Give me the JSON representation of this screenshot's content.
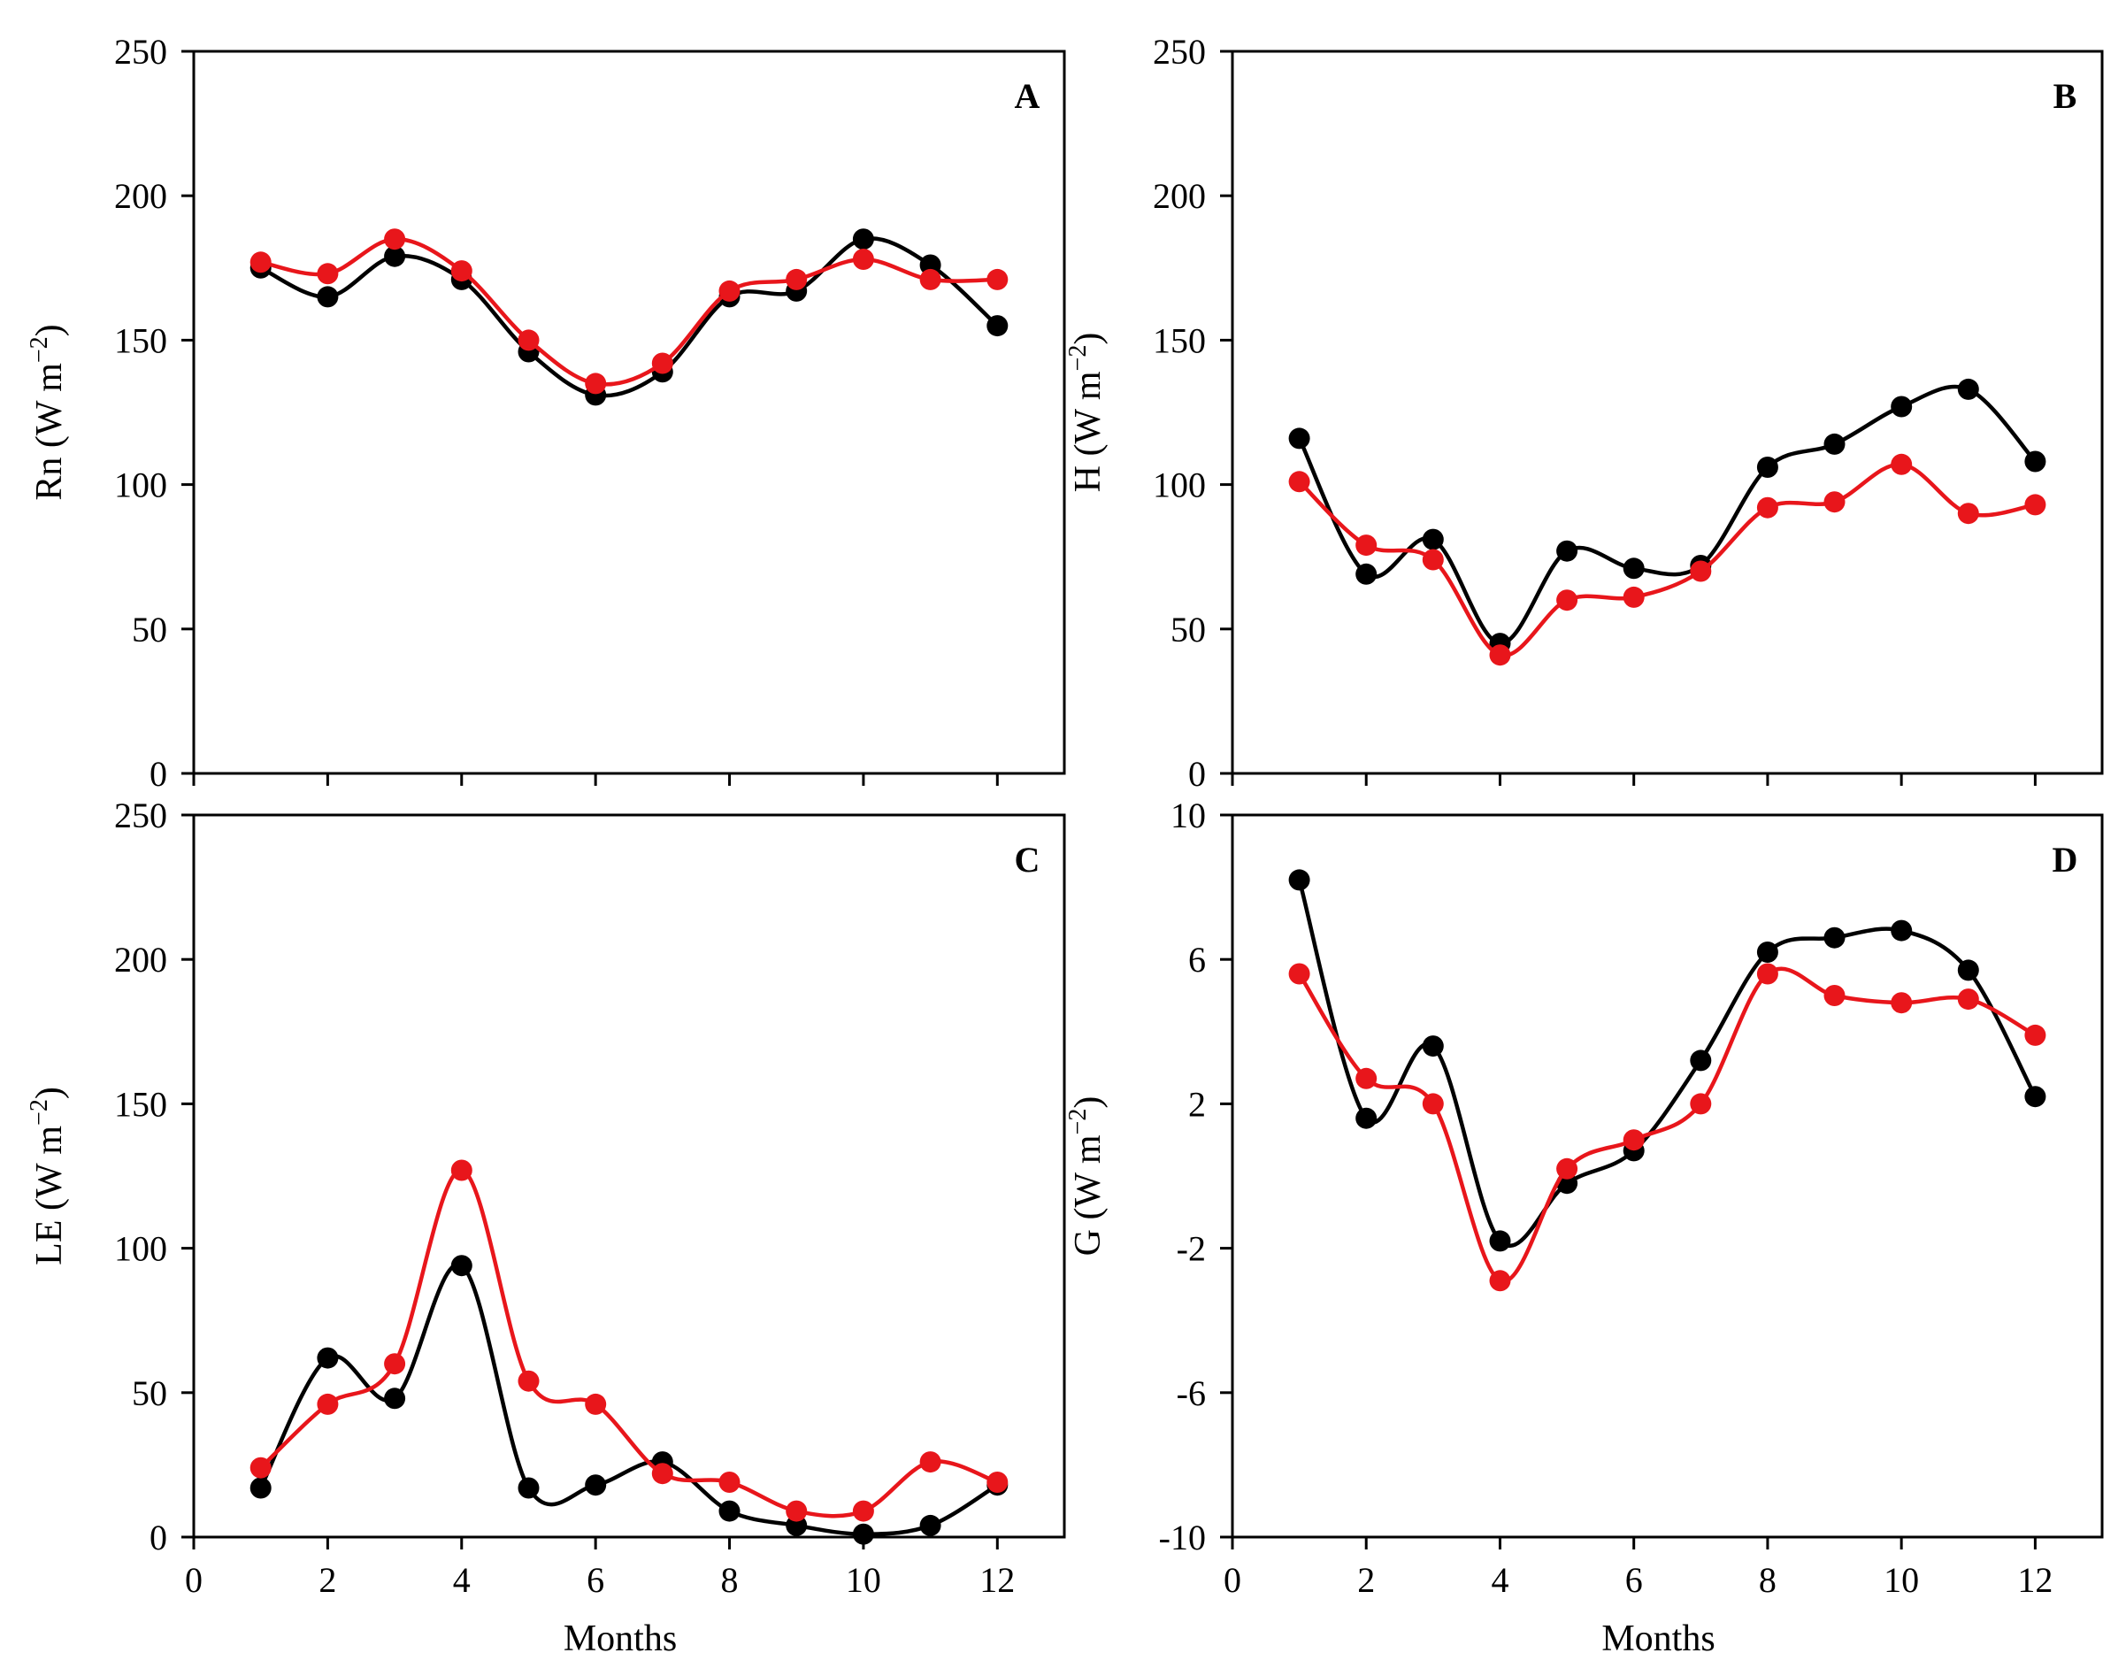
{
  "figure": {
    "xlabel": "Months"
  },
  "colors": {
    "black": "#000000",
    "red": "#e8161b"
  },
  "chart_data": [
    {
      "type": "line",
      "panel": "A",
      "ylabel_main": "Rn (W m",
      "ylabel_sup": "−2",
      "ylabel_close": ")",
      "ylim": [
        0,
        250
      ],
      "yticks": [
        "0",
        "50",
        "100",
        "150",
        "200",
        "250"
      ],
      "xlim": [
        0,
        13
      ],
      "xticks": [
        0,
        2,
        4,
        6,
        8,
        10,
        12
      ],
      "show_xticklabels": false,
      "show_xlabel": false,
      "x": [
        1,
        2,
        3,
        4,
        5,
        6,
        7,
        8,
        9,
        10,
        11,
        12
      ],
      "series": [
        {
          "name": "black",
          "color": "#000000",
          "values": [
            175,
            165,
            179,
            171,
            146,
            131,
            139,
            165,
            167,
            185,
            176,
            155
          ]
        },
        {
          "name": "red",
          "color": "#e8161b",
          "values": [
            177,
            173,
            185,
            174,
            150,
            135,
            142,
            167,
            171,
            178,
            171,
            171
          ]
        }
      ]
    },
    {
      "type": "line",
      "panel": "B",
      "ylabel_main": "H (W m",
      "ylabel_sup": "−2",
      "ylabel_close": ")",
      "ylim": [
        0,
        250
      ],
      "yticks": [
        "0",
        "50",
        "100",
        "150",
        "200",
        "250"
      ],
      "xlim": [
        0,
        13
      ],
      "xticks": [
        0,
        2,
        4,
        6,
        8,
        10,
        12
      ],
      "show_xticklabels": false,
      "show_xlabel": false,
      "x": [
        1,
        2,
        3,
        4,
        5,
        6,
        7,
        8,
        9,
        10,
        11,
        12
      ],
      "series": [
        {
          "name": "black",
          "color": "#000000",
          "values": [
            116,
            69,
            81,
            45,
            77,
            71,
            72,
            106,
            114,
            127,
            133,
            108
          ]
        },
        {
          "name": "red",
          "color": "#e8161b",
          "values": [
            101,
            79,
            74,
            41,
            60,
            61,
            70,
            92,
            94,
            107,
            90,
            93
          ]
        }
      ]
    },
    {
      "type": "line",
      "panel": "C",
      "ylabel_main": "LE (W m",
      "ylabel_sup": "−2",
      "ylabel_close": ")",
      "ylim": [
        0,
        250
      ],
      "yticks": [
        "0",
        "50",
        "100",
        "150",
        "200",
        "250"
      ],
      "xlim": [
        0,
        13
      ],
      "xticks": [
        0,
        2,
        4,
        6,
        8,
        10,
        12
      ],
      "xticklabels": [
        "0",
        "2",
        "4",
        "6",
        "8",
        "10",
        "12"
      ],
      "show_xticklabels": true,
      "show_xlabel": true,
      "x": [
        1,
        2,
        3,
        4,
        5,
        6,
        7,
        8,
        9,
        10,
        11,
        12
      ],
      "series": [
        {
          "name": "black",
          "color": "#000000",
          "values": [
            17,
            62,
            48,
            94,
            17,
            18,
            26,
            9,
            4,
            1,
            4,
            18
          ]
        },
        {
          "name": "red",
          "color": "#e8161b",
          "values": [
            24,
            46,
            60,
            127,
            54,
            46,
            22,
            19,
            9,
            9,
            26,
            19
          ]
        }
      ]
    },
    {
      "type": "line",
      "panel": "D",
      "ylabel_main": "G (W m",
      "ylabel_sup": "−2",
      "ylabel_close": ")",
      "ylim": [
        -10,
        10
      ],
      "yticks": [
        "-10",
        "-6",
        "-2",
        "2",
        "6",
        "10"
      ],
      "xlim": [
        0,
        13
      ],
      "xticks": [
        0,
        2,
        4,
        6,
        8,
        10,
        12
      ],
      "xticklabels": [
        "0",
        "2",
        "4",
        "6",
        "8",
        "10",
        "12"
      ],
      "show_xticklabels": true,
      "show_xlabel": true,
      "x": [
        1,
        2,
        3,
        4,
        5,
        6,
        7,
        8,
        9,
        10,
        11,
        12
      ],
      "series": [
        {
          "name": "black",
          "color": "#000000",
          "values": [
            8.2,
            1.6,
            3.6,
            -1.8,
            -0.2,
            0.7,
            3.2,
            6.2,
            6.6,
            6.8,
            5.7,
            2.2
          ]
        },
        {
          "name": "red",
          "color": "#e8161b",
          "values": [
            5.6,
            2.7,
            2.0,
            -2.9,
            0.2,
            1.0,
            2.0,
            5.6,
            5.0,
            4.8,
            4.9,
            3.9
          ]
        }
      ]
    }
  ]
}
